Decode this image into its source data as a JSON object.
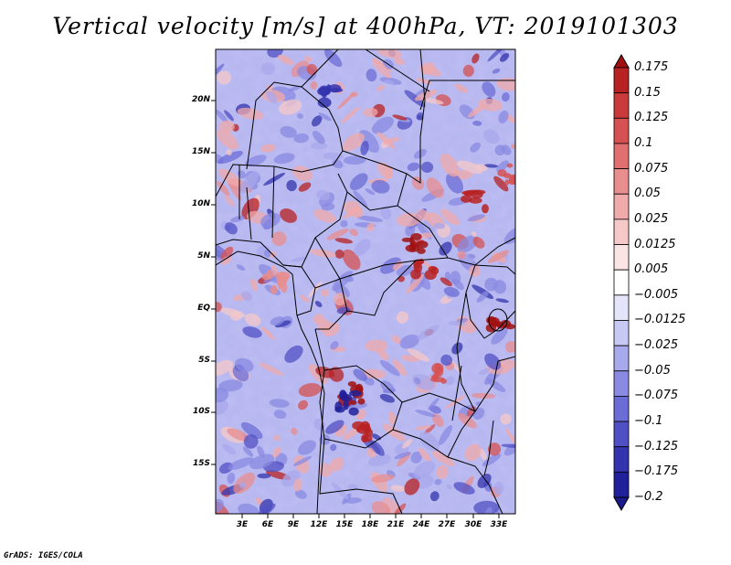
{
  "title": "Vertical velocity [m/s] at 400hPa, VT: 2019101303",
  "credit": "GrADS: IGES/COLA",
  "map": {
    "variable": "Vertical velocity",
    "units": "m/s",
    "level": "400hPa",
    "valid_time": "2019101303",
    "y_ticks": [
      "20N",
      "15N",
      "10N",
      "5N",
      "EQ",
      "5S",
      "10S",
      "15S"
    ],
    "x_ticks": [
      "3E",
      "6E",
      "9E",
      "12E",
      "15E",
      "18E",
      "21E",
      "24E",
      "27E",
      "30E",
      "33E"
    ]
  },
  "colorbar": {
    "labels": [
      "0.175",
      "0.15",
      "0.125",
      "0.1",
      "0.075",
      "0.05",
      "0.025",
      "0.0125",
      "0.005",
      "−0.005",
      "−0.0125",
      "−0.025",
      "−0.05",
      "−0.075",
      "−0.1",
      "−0.125",
      "−0.175",
      "−0.2"
    ],
    "colors": [
      "#a01010",
      "#b82222",
      "#c93a3a",
      "#d65252",
      "#e07070",
      "#e88e8e",
      "#f0aaaa",
      "#f6c8c8",
      "#fbe4e4",
      "#ffffff",
      "#e4e4fb",
      "#c8c8f4",
      "#a8a8ec",
      "#8a8ae2",
      "#6c6cd6",
      "#5050c4",
      "#3434ae",
      "#20209a",
      "#1a1a88"
    ]
  }
}
